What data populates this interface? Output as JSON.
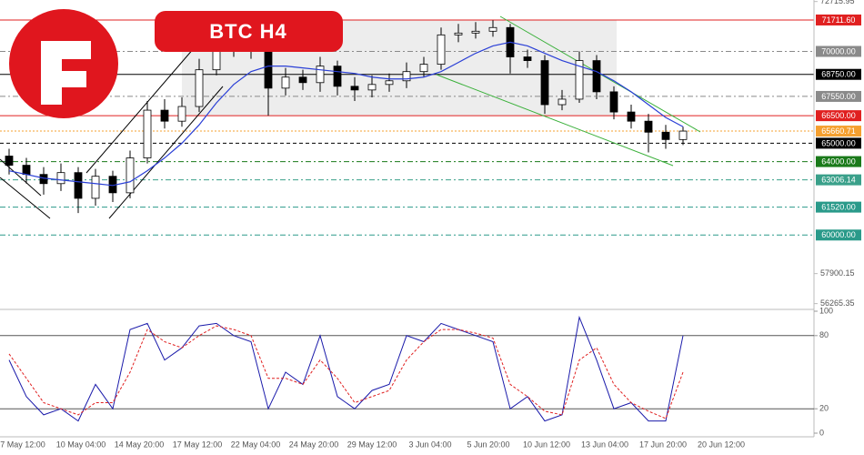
{
  "chart_data": [
    {
      "type": "candlestick",
      "title": "BTC H4",
      "ylim": [
        55950,
        72800
      ],
      "yticks": [
        {
          "value": 72715.95,
          "label": "72715.95"
        },
        {
          "value": 57900.15,
          "label": "57900.15"
        },
        {
          "value": 56265.35,
          "label": "56265.35"
        }
      ],
      "x_labels": [
        "7 May 12:00",
        "10 May 04:00",
        "14 May 20:00",
        "17 May 12:00",
        "22 May 04:00",
        "24 May 20:00",
        "29 May 12:00",
        "3 Jun 04:00",
        "5 Jun 20:00",
        "10 Jun 12:00",
        "13 Jun 04:00",
        "17 Jun 20:00",
        "20 Jun 12:00"
      ],
      "open": [
        64300,
        63800,
        63300,
        62800,
        63400,
        62000,
        63200,
        62300,
        64200,
        66800,
        66200,
        67000,
        69000,
        70300,
        70100,
        70000,
        68000,
        68600,
        68300,
        69200,
        68100,
        67900,
        68200,
        68400,
        68900,
        69300,
        70900,
        71000,
        71100,
        71300,
        69700,
        69500,
        67100,
        67400,
        69500,
        67800,
        66700,
        66200,
        65600,
        65200
      ],
      "high": [
        64700,
        64200,
        63700,
        63900,
        63700,
        63600,
        63500,
        64600,
        67300,
        67400,
        67500,
        69600,
        70900,
        70700,
        70600,
        70400,
        69100,
        69000,
        69700,
        69500,
        68600,
        68700,
        68800,
        69400,
        69700,
        71300,
        71500,
        71600,
        71700,
        71500,
        70100,
        69800,
        67900,
        70000,
        69800,
        68100,
        67100,
        66600,
        66000,
        65900
      ],
      "low": [
        63300,
        62800,
        62200,
        62400,
        61200,
        61600,
        61800,
        62000,
        63900,
        65800,
        65900,
        66700,
        68700,
        69700,
        69600,
        66500,
        67600,
        67900,
        67800,
        67600,
        67300,
        67500,
        67800,
        68000,
        68600,
        69000,
        70500,
        70700,
        70800,
        68800,
        69100,
        66600,
        66800,
        67200,
        67400,
        66300,
        65800,
        64500,
        64700,
        64900
      ],
      "close": [
        63800,
        63300,
        62800,
        63400,
        62000,
        63200,
        62300,
        64200,
        66800,
        66200,
        67000,
        69000,
        70300,
        70100,
        70000,
        68000,
        68600,
        68300,
        69200,
        68100,
        67900,
        68200,
        68400,
        68900,
        69300,
        70900,
        71000,
        71100,
        71300,
        69700,
        69500,
        67100,
        67400,
        69500,
        67800,
        66700,
        66200,
        65600,
        65200,
        65660.71
      ],
      "up_color": "#ffffff",
      "down_color": "#000000",
      "series": [
        {
          "color": "#2a3fd6",
          "values": [
            63500,
            63300,
            63100,
            63000,
            62900,
            62800,
            62700,
            62900,
            63500,
            64200,
            65000,
            66000,
            67200,
            68200,
            68900,
            69200,
            69200,
            69100,
            69000,
            68900,
            68800,
            68600,
            68500,
            68500,
            68600,
            68900,
            69400,
            69900,
            70300,
            70500,
            70300,
            69900,
            69500,
            69200,
            68900,
            68400,
            67800,
            67100,
            66400,
            65900
          ]
        }
      ],
      "levels": [
        {
          "value": 71711.6,
          "label": "71711.60",
          "color": "#e02020",
          "dash": "none"
        },
        {
          "value": 70000,
          "label": "70000.00",
          "color": "#8a8a8a",
          "dash": "6 3 2 3"
        },
        {
          "value": 68750,
          "label": "68750.00",
          "color": "#000000",
          "dash": "none"
        },
        {
          "value": 67550,
          "label": "67550.00",
          "color": "#8a8a8a",
          "dash": "6 3 2 3"
        },
        {
          "value": 66500,
          "label": "66500.00",
          "color": "#e02020",
          "dash": "none"
        },
        {
          "value": 65660.71,
          "label": "65660.71",
          "color": "#f5a030",
          "dash": "2 2"
        },
        {
          "value": 65000,
          "label": "65000.00",
          "color": "#000000",
          "dash": "4 3"
        },
        {
          "value": 64000,
          "label": "64000.00",
          "color": "#1a7a1a",
          "dash": "6 3 2 3"
        },
        {
          "value": 63006.14,
          "label": "63006.14",
          "color": "#3aa08a",
          "dash": "6 3 2 3"
        },
        {
          "value": 61520,
          "label": "61520.00",
          "color": "#2a9a8a",
          "dash": "6 3 2 3"
        },
        {
          "value": 60000,
          "label": "60000.00",
          "color": "#2a9a8a",
          "dash": "6 3 2 3"
        }
      ]
    },
    {
      "type": "line",
      "ylim": [
        0,
        100
      ],
      "yticks": [
        100,
        80,
        20,
        0
      ],
      "levels": [
        80,
        20
      ],
      "series": [
        {
          "color": "#1a1aaa",
          "dash": "none",
          "values": [
            60,
            30,
            15,
            20,
            10,
            40,
            20,
            85,
            90,
            60,
            70,
            88,
            90,
            80,
            75,
            20,
            50,
            40,
            80,
            30,
            20,
            35,
            40,
            80,
            75,
            90,
            85,
            80,
            75,
            20,
            30,
            10,
            15,
            95,
            60,
            20,
            25,
            10,
            10,
            80
          ]
        },
        {
          "color": "#e02020",
          "dash": "3 2",
          "values": [
            65,
            45,
            25,
            20,
            15,
            25,
            25,
            50,
            85,
            75,
            70,
            80,
            88,
            85,
            80,
            45,
            45,
            40,
            60,
            45,
            25,
            30,
            35,
            60,
            75,
            85,
            85,
            82,
            78,
            40,
            30,
            18,
            15,
            60,
            70,
            40,
            25,
            18,
            12,
            50
          ]
        }
      ]
    }
  ]
}
